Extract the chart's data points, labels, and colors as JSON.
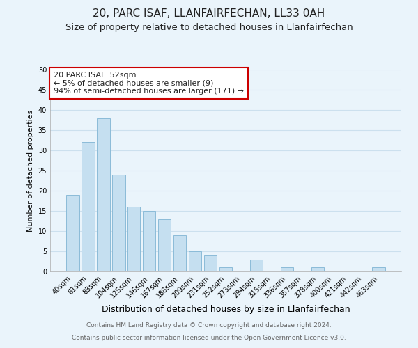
{
  "title": "20, PARC ISAF, LLANFAIRFECHAN, LL33 0AH",
  "subtitle": "Size of property relative to detached houses in Llanfairfechan",
  "xlabel": "Distribution of detached houses by size in Llanfairfechan",
  "ylabel": "Number of detached properties",
  "bar_labels": [
    "40sqm",
    "61sqm",
    "83sqm",
    "104sqm",
    "125sqm",
    "146sqm",
    "167sqm",
    "188sqm",
    "209sqm",
    "231sqm",
    "252sqm",
    "273sqm",
    "294sqm",
    "315sqm",
    "336sqm",
    "357sqm",
    "378sqm",
    "400sqm",
    "421sqm",
    "442sqm",
    "463sqm"
  ],
  "bar_values": [
    19,
    32,
    38,
    24,
    16,
    15,
    13,
    9,
    5,
    4,
    1,
    0,
    3,
    0,
    1,
    0,
    1,
    0,
    0,
    0,
    1
  ],
  "bar_color": "#c5dff0",
  "bar_edge_color": "#8bbbd8",
  "annotation_text": "20 PARC ISAF: 52sqm\n← 5% of detached houses are smaller (9)\n94% of semi-detached houses are larger (171) →",
  "annotation_box_color": "#ffffff",
  "annotation_box_edge_color": "#cc0000",
  "ylim": [
    0,
    50
  ],
  "yticks": [
    0,
    5,
    10,
    15,
    20,
    25,
    30,
    35,
    40,
    45,
    50
  ],
  "grid_color": "#cce0ee",
  "background_color": "#eaf4fb",
  "footer_line1": "Contains HM Land Registry data © Crown copyright and database right 2024.",
  "footer_line2": "Contains public sector information licensed under the Open Government Licence v3.0.",
  "title_fontsize": 11,
  "subtitle_fontsize": 9.5,
  "xlabel_fontsize": 9,
  "ylabel_fontsize": 8,
  "tick_fontsize": 7,
  "annotation_fontsize": 8,
  "footer_fontsize": 6.5
}
